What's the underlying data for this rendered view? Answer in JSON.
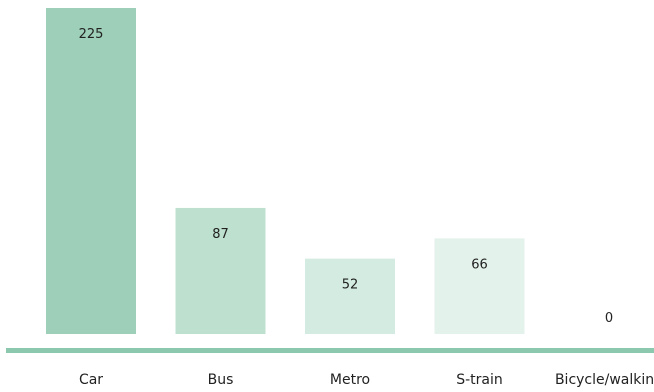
{
  "chart_data": {
    "type": "bar",
    "categories": [
      "Car",
      "Bus",
      "Metro",
      "S-train",
      "Bicycle/walking"
    ],
    "values": [
      225,
      87,
      52,
      66,
      0
    ],
    "ylim": [
      0,
      225
    ],
    "grid": false,
    "colors": [
      "#9ecfb8",
      "#bde0cf",
      "#d3ebe0",
      "#e3f2eb",
      "#eef8f3"
    ],
    "axis_color": "#8cc8ad"
  }
}
